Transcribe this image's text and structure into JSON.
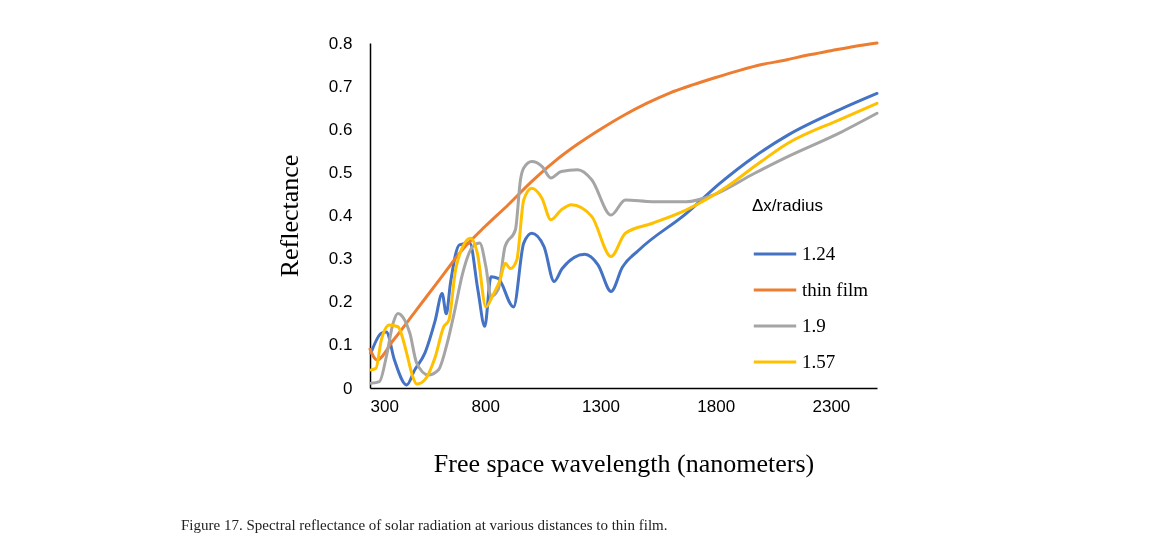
{
  "chart_data": {
    "type": "line",
    "xlabel": "Free space wavelength (nanometers)",
    "ylabel": "Reflectance",
    "legend_title": "Δx/radius",
    "xlim": [
      300,
      2500
    ],
    "xticks": [
      300,
      800,
      1300,
      1800,
      2300
    ],
    "ylim": [
      0,
      0.8
    ],
    "yticks": [
      0,
      0.1,
      0.2,
      0.3,
      0.4,
      0.5,
      0.6,
      0.7,
      0.8
    ],
    "grid": false,
    "legend": "right",
    "marker": "none",
    "line_style": "solid",
    "annotations": [
      "Figure 17. Spectral reflectance of solar radiation at various distances to thin film."
    ],
    "series": [
      {
        "name": "1.24",
        "color": "#4472c4",
        "x": [
          304,
          349,
          371,
          406,
          459,
          494,
          538,
          583,
          613,
          631,
          649,
          688,
          733,
          768,
          798,
          825,
          856,
          923,
          967,
          1002,
          1055,
          1099,
          1134,
          1232,
          1290,
          1346,
          1395,
          1467,
          1673,
          1819,
          1969,
          2115,
          2336,
          2500
        ],
        "values": [
          0.081,
          0.127,
          0.13,
          0.065,
          0.007,
          0.042,
          0.081,
          0.157,
          0.219,
          0.172,
          0.243,
          0.332,
          0.336,
          0.228,
          0.143,
          0.258,
          0.254,
          0.188,
          0.336,
          0.359,
          0.328,
          0.247,
          0.277,
          0.31,
          0.285,
          0.224,
          0.28,
          0.32,
          0.405,
          0.475,
          0.537,
          0.587,
          0.645,
          0.683
        ]
      },
      {
        "name": "thin film",
        "color": "#ed7d31",
        "x": [
          300,
          330,
          400,
          500,
          600,
          700,
          800,
          900,
          1000,
          1100,
          1200,
          1300,
          1400,
          1500,
          1600,
          1700,
          1800,
          1900,
          2000,
          2100,
          2200,
          2300,
          2400,
          2500
        ],
        "values": [
          0.09,
          0.065,
          0.11,
          0.18,
          0.25,
          0.32,
          0.375,
          0.425,
          0.478,
          0.525,
          0.565,
          0.6,
          0.632,
          0.66,
          0.684,
          0.703,
          0.72,
          0.736,
          0.75,
          0.76,
          0.772,
          0.782,
          0.792,
          0.8
        ]
      },
      {
        "name": "1.9",
        "color": "#a5a5a5",
        "x": [
          304,
          341,
          371,
          400,
          421,
          450,
          473,
          503,
          553,
          597,
          635,
          665,
          702,
          746,
          776,
          803,
          825,
          856,
          886,
          931,
          953,
          967,
          1002,
          1046,
          1085,
          1130,
          1201,
          1262,
          1346,
          1408,
          1526,
          1673,
          1792,
          1969,
          2115,
          2336,
          2500
        ],
        "values": [
          0.011,
          0.015,
          0.073,
          0.15,
          0.173,
          0.158,
          0.127,
          0.057,
          0.03,
          0.042,
          0.104,
          0.173,
          0.266,
          0.328,
          0.336,
          0.281,
          0.212,
          0.228,
          0.328,
          0.367,
          0.483,
          0.51,
          0.525,
          0.514,
          0.487,
          0.502,
          0.506,
          0.483,
          0.401,
          0.436,
          0.432,
          0.432,
          0.448,
          0.498,
          0.537,
          0.591,
          0.637
        ]
      },
      {
        "name": "1.57",
        "color": "#ffc000",
        "x": [
          304,
          326,
          349,
          384,
          421,
          459,
          481,
          503,
          538,
          583,
          620,
          642,
          671,
          702,
          737,
          766,
          803,
          834,
          864,
          887,
          909,
          937,
          967,
          1002,
          1046,
          1085,
          1130,
          1174,
          1262,
          1346,
          1408,
          1526,
          1673,
          1850,
          1969,
          2115,
          2336,
          2500
        ],
        "values": [
          0.042,
          0.046,
          0.111,
          0.146,
          0.142,
          0.081,
          0.034,
          0.009,
          0.019,
          0.072,
          0.142,
          0.157,
          0.273,
          0.327,
          0.347,
          0.312,
          0.188,
          0.216,
          0.25,
          0.289,
          0.277,
          0.297,
          0.436,
          0.463,
          0.44,
          0.39,
          0.413,
          0.425,
          0.398,
          0.305,
          0.359,
          0.382,
          0.413,
          0.467,
          0.514,
          0.568,
          0.622,
          0.66
        ]
      }
    ]
  }
}
